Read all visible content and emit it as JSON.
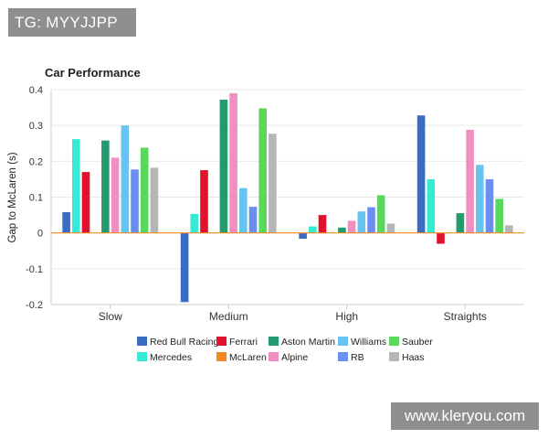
{
  "watermarks": {
    "top_left": "TG: MYYJJPP",
    "bottom_right": "www.kleryou.com"
  },
  "chart_data": {
    "type": "bar",
    "title": "Car Performance",
    "xlabel": "",
    "ylabel": "Gap to McLaren (s)",
    "ylim": [
      -0.2,
      0.4
    ],
    "yticks": [
      "0.4",
      "0.3",
      "0.2",
      "0.1",
      "0",
      "-0.1",
      "-0.2"
    ],
    "grid": true,
    "legend_position": "bottom",
    "categories": [
      "Slow",
      "Medium",
      "High",
      "Straights"
    ],
    "series": [
      {
        "name": "Red Bull Racing",
        "color": "#3a6cc4",
        "values": [
          0.058,
          -0.193,
          -0.016,
          0.328
        ]
      },
      {
        "name": "Mercedes",
        "color": "#37ead6",
        "values": [
          0.262,
          0.053,
          0.018,
          0.15
        ]
      },
      {
        "name": "Ferrari",
        "color": "#e0122c",
        "values": [
          0.17,
          0.175,
          0.05,
          -0.03
        ]
      },
      {
        "name": "McLaren",
        "color": "#f5891f",
        "values": [
          0,
          0,
          0,
          0
        ]
      },
      {
        "name": "Aston Martin",
        "color": "#249b6e",
        "values": [
          0.258,
          0.372,
          0.015,
          0.055
        ]
      },
      {
        "name": "Alpine",
        "color": "#f08fc2",
        "values": [
          0.21,
          0.39,
          0.034,
          0.288
        ]
      },
      {
        "name": "Williams",
        "color": "#67c4f2",
        "values": [
          0.3,
          0.125,
          0.06,
          0.19
        ]
      },
      {
        "name": "RB",
        "color": "#6a8fee",
        "values": [
          0.177,
          0.073,
          0.072,
          0.15
        ]
      },
      {
        "name": "Sauber",
        "color": "#56d95c",
        "values": [
          0.238,
          0.348,
          0.105,
          0.095
        ]
      },
      {
        "name": "Haas",
        "color": "#b6b6b6",
        "values": [
          0.182,
          0.277,
          0.026,
          0.021
        ]
      }
    ],
    "legend_rows": [
      [
        "Red Bull Racing",
        "Ferrari",
        "Aston Martin",
        "Williams",
        "Sauber"
      ],
      [
        "Mercedes",
        "McLaren",
        "Alpine",
        "RB",
        "Haas"
      ]
    ]
  }
}
